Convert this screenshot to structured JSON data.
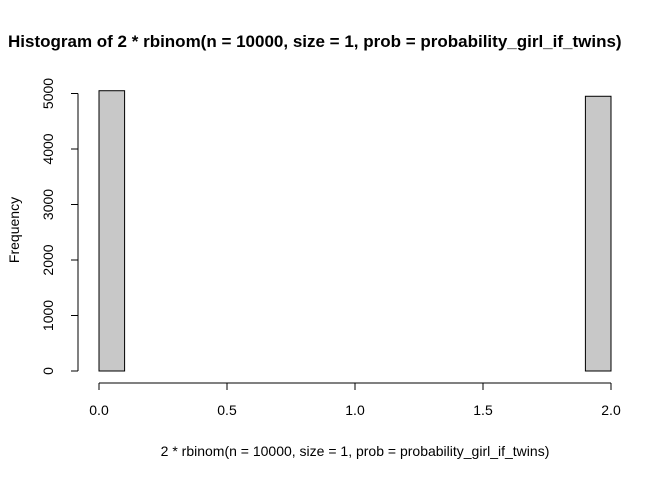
{
  "chart_data": {
    "type": "bar",
    "title": "Histogram of 2 * rbinom(n = 10000, size = 1, prob = probability_girl_if_twins)",
    "xlabel": "2 * rbinom(n = 10000, size = 1, prob = probability_girl_if_twins)",
    "ylabel": "Frequency",
    "xlim": [
      0,
      2
    ],
    "ylim": [
      0,
      5000
    ],
    "x_ticks": [
      "0.0",
      "0.5",
      "1.0",
      "1.5",
      "2.0"
    ],
    "y_ticks": [
      "0",
      "1000",
      "2000",
      "3000",
      "4000",
      "5000"
    ],
    "bin_width": 0.1,
    "bin_starts": [
      0.0,
      0.1,
      0.2,
      0.3,
      0.4,
      0.5,
      0.6,
      0.7,
      0.8,
      0.9,
      1.0,
      1.1,
      1.2,
      1.3,
      1.4,
      1.5,
      1.6,
      1.7,
      1.8,
      1.9
    ],
    "values": [
      5050,
      0,
      0,
      0,
      0,
      0,
      0,
      0,
      0,
      0,
      0,
      0,
      0,
      0,
      0,
      0,
      0,
      0,
      0,
      4950
    ],
    "bar_color": "#c8c8c8",
    "grid": false
  }
}
